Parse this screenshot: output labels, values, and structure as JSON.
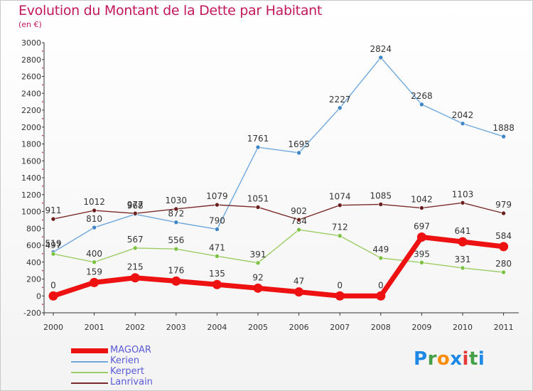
{
  "title": "Evolution du Montant de la Dette par Habitant",
  "subtitle": "(en €)",
  "logo": {
    "text": "Proxiti",
    "letters": [
      "P",
      "r",
      "o",
      "x",
      "i",
      "t",
      "i"
    ],
    "colors": [
      "#1e88e5",
      "#43a047",
      "#fb8c00",
      "#1e88e5",
      "#e53935",
      "#43a047",
      "#1e88e5"
    ]
  },
  "chart_data": {
    "type": "line",
    "title": "Evolution du Montant de la Dette par Habitant",
    "ylabel": "(en €)",
    "x": [
      "2000",
      "2001",
      "2002",
      "2003",
      "2004",
      "2005",
      "2006",
      "2007",
      "2008",
      "2009",
      "2010",
      "2011"
    ],
    "ylim": [
      -200,
      3000
    ],
    "yticks": [
      -200,
      0,
      200,
      400,
      600,
      800,
      1000,
      1200,
      1400,
      1600,
      1800,
      2000,
      2200,
      2400,
      2600,
      2800,
      3000
    ],
    "grid": false,
    "legend_position": "bottom-left",
    "series": [
      {
        "name": "MAGOAR",
        "color": "#ee1111",
        "width": "thick",
        "values": [
          0,
          159,
          215,
          176,
          135,
          92,
          47,
          0,
          0,
          697,
          641,
          584
        ]
      },
      {
        "name": "Kerien",
        "color": "#6fa8dc",
        "width": "thin",
        "values": [
          519,
          810,
          968,
          872,
          790,
          1761,
          1695,
          2227,
          2824,
          2268,
          2042,
          1888
        ]
      },
      {
        "name": "Kerpert",
        "color": "#9ccc65",
        "width": "thin",
        "values": [
          497,
          400,
          567,
          556,
          471,
          391,
          784,
          712,
          449,
          395,
          331,
          280
        ]
      },
      {
        "name": "Lanrivain",
        "color": "#7b2b2b",
        "width": "thin",
        "values": [
          911,
          1012,
          977,
          1030,
          1079,
          1051,
          902,
          1074,
          1085,
          1042,
          1103,
          979
        ]
      }
    ]
  }
}
